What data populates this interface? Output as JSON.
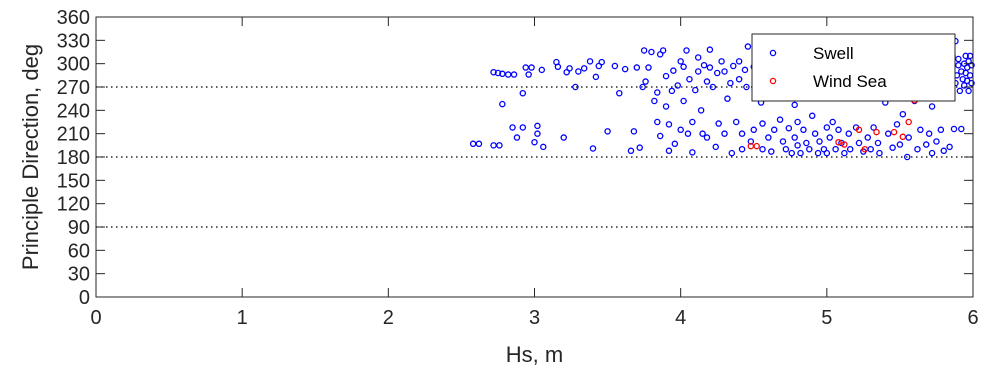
{
  "chart_data": {
    "type": "scatter",
    "title": "",
    "xlabel": "Hs, m",
    "ylabel": "Principle Direction, deg",
    "xlim": [
      0,
      6
    ],
    "ylim": [
      0,
      360
    ],
    "xticks": [
      0,
      1,
      2,
      3,
      4,
      5,
      6
    ],
    "yticks": [
      0,
      30,
      60,
      90,
      120,
      150,
      180,
      210,
      240,
      270,
      300,
      330,
      360
    ],
    "grid": false,
    "reference_lines": [
      {
        "axis": "y",
        "value": 90,
        "style": "dotted"
      },
      {
        "axis": "y",
        "value": 180,
        "style": "dotted"
      },
      {
        "axis": "y",
        "value": 270,
        "style": "dotted"
      }
    ],
    "legend": {
      "position": "top-right"
    },
    "series": [
      {
        "name": "Swell",
        "color": "#0000ff",
        "marker": "circle-open",
        "points": [
          [
            2.58,
            197
          ],
          [
            2.62,
            197
          ],
          [
            2.72,
            195
          ],
          [
            2.76,
            195
          ],
          [
            2.72,
            289
          ],
          [
            2.75,
            288
          ],
          [
            2.78,
            287
          ],
          [
            2.82,
            286
          ],
          [
            2.86,
            286
          ],
          [
            2.78,
            248
          ],
          [
            2.85,
            218
          ],
          [
            2.88,
            205
          ],
          [
            2.92,
            262
          ],
          [
            2.92,
            218
          ],
          [
            2.94,
            295
          ],
          [
            2.96,
            286
          ],
          [
            2.98,
            295
          ],
          [
            3.0,
            199
          ],
          [
            3.02,
            210
          ],
          [
            3.02,
            220
          ],
          [
            3.05,
            292
          ],
          [
            3.06,
            193
          ],
          [
            3.15,
            302
          ],
          [
            3.16,
            296
          ],
          [
            3.2,
            205
          ],
          [
            3.22,
            289
          ],
          [
            3.24,
            294
          ],
          [
            3.28,
            270
          ],
          [
            3.3,
            290
          ],
          [
            3.34,
            294
          ],
          [
            3.38,
            303
          ],
          [
            3.4,
            191
          ],
          [
            3.42,
            283
          ],
          [
            3.44,
            297
          ],
          [
            3.46,
            302
          ],
          [
            3.5,
            213
          ],
          [
            3.55,
            297
          ],
          [
            3.58,
            262
          ],
          [
            3.62,
            293
          ],
          [
            3.66,
            188
          ],
          [
            3.68,
            213
          ],
          [
            3.7,
            295
          ],
          [
            3.72,
            192
          ],
          [
            3.74,
            270
          ],
          [
            3.75,
            317
          ],
          [
            3.76,
            277
          ],
          [
            3.78,
            295
          ],
          [
            3.8,
            315
          ],
          [
            3.82,
            252
          ],
          [
            3.84,
            263
          ],
          [
            3.84,
            225
          ],
          [
            3.86,
            207
          ],
          [
            3.86,
            312
          ],
          [
            3.88,
            317
          ],
          [
            3.9,
            284
          ],
          [
            3.9,
            245
          ],
          [
            3.92,
            188
          ],
          [
            3.92,
            222
          ],
          [
            3.94,
            265
          ],
          [
            3.95,
            291
          ],
          [
            3.96,
            197
          ],
          [
            3.98,
            272
          ],
          [
            4.0,
            215
          ],
          [
            4.0,
            303
          ],
          [
            4.02,
            252
          ],
          [
            4.02,
            296
          ],
          [
            4.04,
            317
          ],
          [
            4.05,
            210
          ],
          [
            4.06,
            280
          ],
          [
            4.08,
            186
          ],
          [
            4.08,
            225
          ],
          [
            4.1,
            266
          ],
          [
            4.12,
            290
          ],
          [
            4.12,
            308
          ],
          [
            4.14,
            240
          ],
          [
            4.15,
            210
          ],
          [
            4.16,
            298
          ],
          [
            4.18,
            277
          ],
          [
            4.18,
            205
          ],
          [
            4.2,
            318
          ],
          [
            4.2,
            295
          ],
          [
            4.22,
            270
          ],
          [
            4.24,
            193
          ],
          [
            4.25,
            288
          ],
          [
            4.26,
            223
          ],
          [
            4.28,
            303
          ],
          [
            4.3,
            290
          ],
          [
            4.3,
            210
          ],
          [
            4.32,
            255
          ],
          [
            4.34,
            275
          ],
          [
            4.35,
            185
          ],
          [
            4.36,
            297
          ],
          [
            4.38,
            225
          ],
          [
            4.4,
            303
          ],
          [
            4.4,
            280
          ],
          [
            4.42,
            190
          ],
          [
            4.42,
            210
          ],
          [
            4.44,
            292
          ],
          [
            4.45,
            270
          ],
          [
            4.46,
            322
          ],
          [
            4.48,
            200
          ],
          [
            4.5,
            296
          ],
          [
            4.5,
            215
          ],
          [
            4.52,
            280
          ],
          [
            4.55,
            250
          ],
          [
            4.56,
            190
          ],
          [
            4.56,
            223
          ],
          [
            4.58,
            305
          ],
          [
            4.6,
            272
          ],
          [
            4.6,
            205
          ],
          [
            4.62,
            187
          ],
          [
            4.64,
            215
          ],
          [
            4.66,
            295
          ],
          [
            4.68,
            228
          ],
          [
            4.7,
            200
          ],
          [
            4.7,
            258
          ],
          [
            4.72,
            190
          ],
          [
            4.74,
            217
          ],
          [
            4.76,
            185
          ],
          [
            4.78,
            247
          ],
          [
            4.78,
            205
          ],
          [
            4.8,
            225
          ],
          [
            4.8,
            195
          ],
          [
            4.82,
            185
          ],
          [
            4.84,
            215
          ],
          [
            4.85,
            270
          ],
          [
            4.86,
            198
          ],
          [
            4.88,
            190
          ],
          [
            4.9,
            233
          ],
          [
            4.92,
            210
          ],
          [
            4.94,
            185
          ],
          [
            4.95,
            200
          ],
          [
            4.96,
            280
          ],
          [
            4.98,
            190
          ],
          [
            5.0,
            218
          ],
          [
            5.0,
            185
          ],
          [
            5.02,
            205
          ],
          [
            5.04,
            225
          ],
          [
            5.06,
            190
          ],
          [
            5.08,
            215
          ],
          [
            5.1,
            198
          ],
          [
            5.1,
            260
          ],
          [
            5.12,
            185
          ],
          [
            5.15,
            210
          ],
          [
            5.16,
            190
          ],
          [
            5.2,
            218
          ],
          [
            5.22,
            198
          ],
          [
            5.22,
            265
          ],
          [
            5.25,
            187
          ],
          [
            5.28,
            205
          ],
          [
            5.3,
            190
          ],
          [
            5.32,
            218
          ],
          [
            5.35,
            198
          ],
          [
            5.36,
            185
          ],
          [
            5.4,
            250
          ],
          [
            5.42,
            210
          ],
          [
            5.45,
            192
          ],
          [
            5.46,
            270
          ],
          [
            5.48,
            222
          ],
          [
            5.5,
            196
          ],
          [
            5.52,
            235
          ],
          [
            5.55,
            180
          ],
          [
            5.56,
            205
          ],
          [
            5.6,
            252
          ],
          [
            5.62,
            190
          ],
          [
            5.64,
            215
          ],
          [
            5.66,
            268
          ],
          [
            5.68,
            196
          ],
          [
            5.7,
            210
          ],
          [
            5.72,
            185
          ],
          [
            5.72,
            245
          ],
          [
            5.75,
            200
          ],
          [
            5.78,
            215
          ],
          [
            5.8,
            188
          ],
          [
            5.82,
            265
          ],
          [
            5.84,
            193
          ],
          [
            5.86,
            310
          ],
          [
            5.87,
            216
          ],
          [
            5.88,
            329
          ],
          [
            5.88,
            275
          ],
          [
            5.89,
            285
          ],
          [
            5.9,
            298
          ],
          [
            5.9,
            306
          ],
          [
            5.91,
            265
          ],
          [
            5.92,
            290
          ],
          [
            5.92,
            216
          ],
          [
            5.93,
            280
          ],
          [
            5.94,
            300
          ],
          [
            5.94,
            272
          ],
          [
            5.95,
            310
          ],
          [
            5.95,
            288
          ],
          [
            5.96,
            295
          ],
          [
            5.96,
            278
          ],
          [
            5.97,
            303
          ],
          [
            5.97,
            265
          ],
          [
            5.98,
            285
          ],
          [
            5.98,
            310
          ],
          [
            5.99,
            275
          ],
          [
            5.99,
            298
          ]
        ]
      },
      {
        "name": "Wind Sea",
        "color": "#ff0000",
        "marker": "circle-open",
        "points": [
          [
            4.48,
            194
          ],
          [
            4.52,
            194
          ],
          [
            5.08,
            199
          ],
          [
            5.12,
            196
          ],
          [
            5.22,
            215
          ],
          [
            5.26,
            190
          ],
          [
            5.34,
            212
          ],
          [
            5.46,
            212
          ],
          [
            5.52,
            206
          ],
          [
            5.56,
            225
          ],
          [
            5.6,
            253
          ]
        ]
      }
    ]
  }
}
